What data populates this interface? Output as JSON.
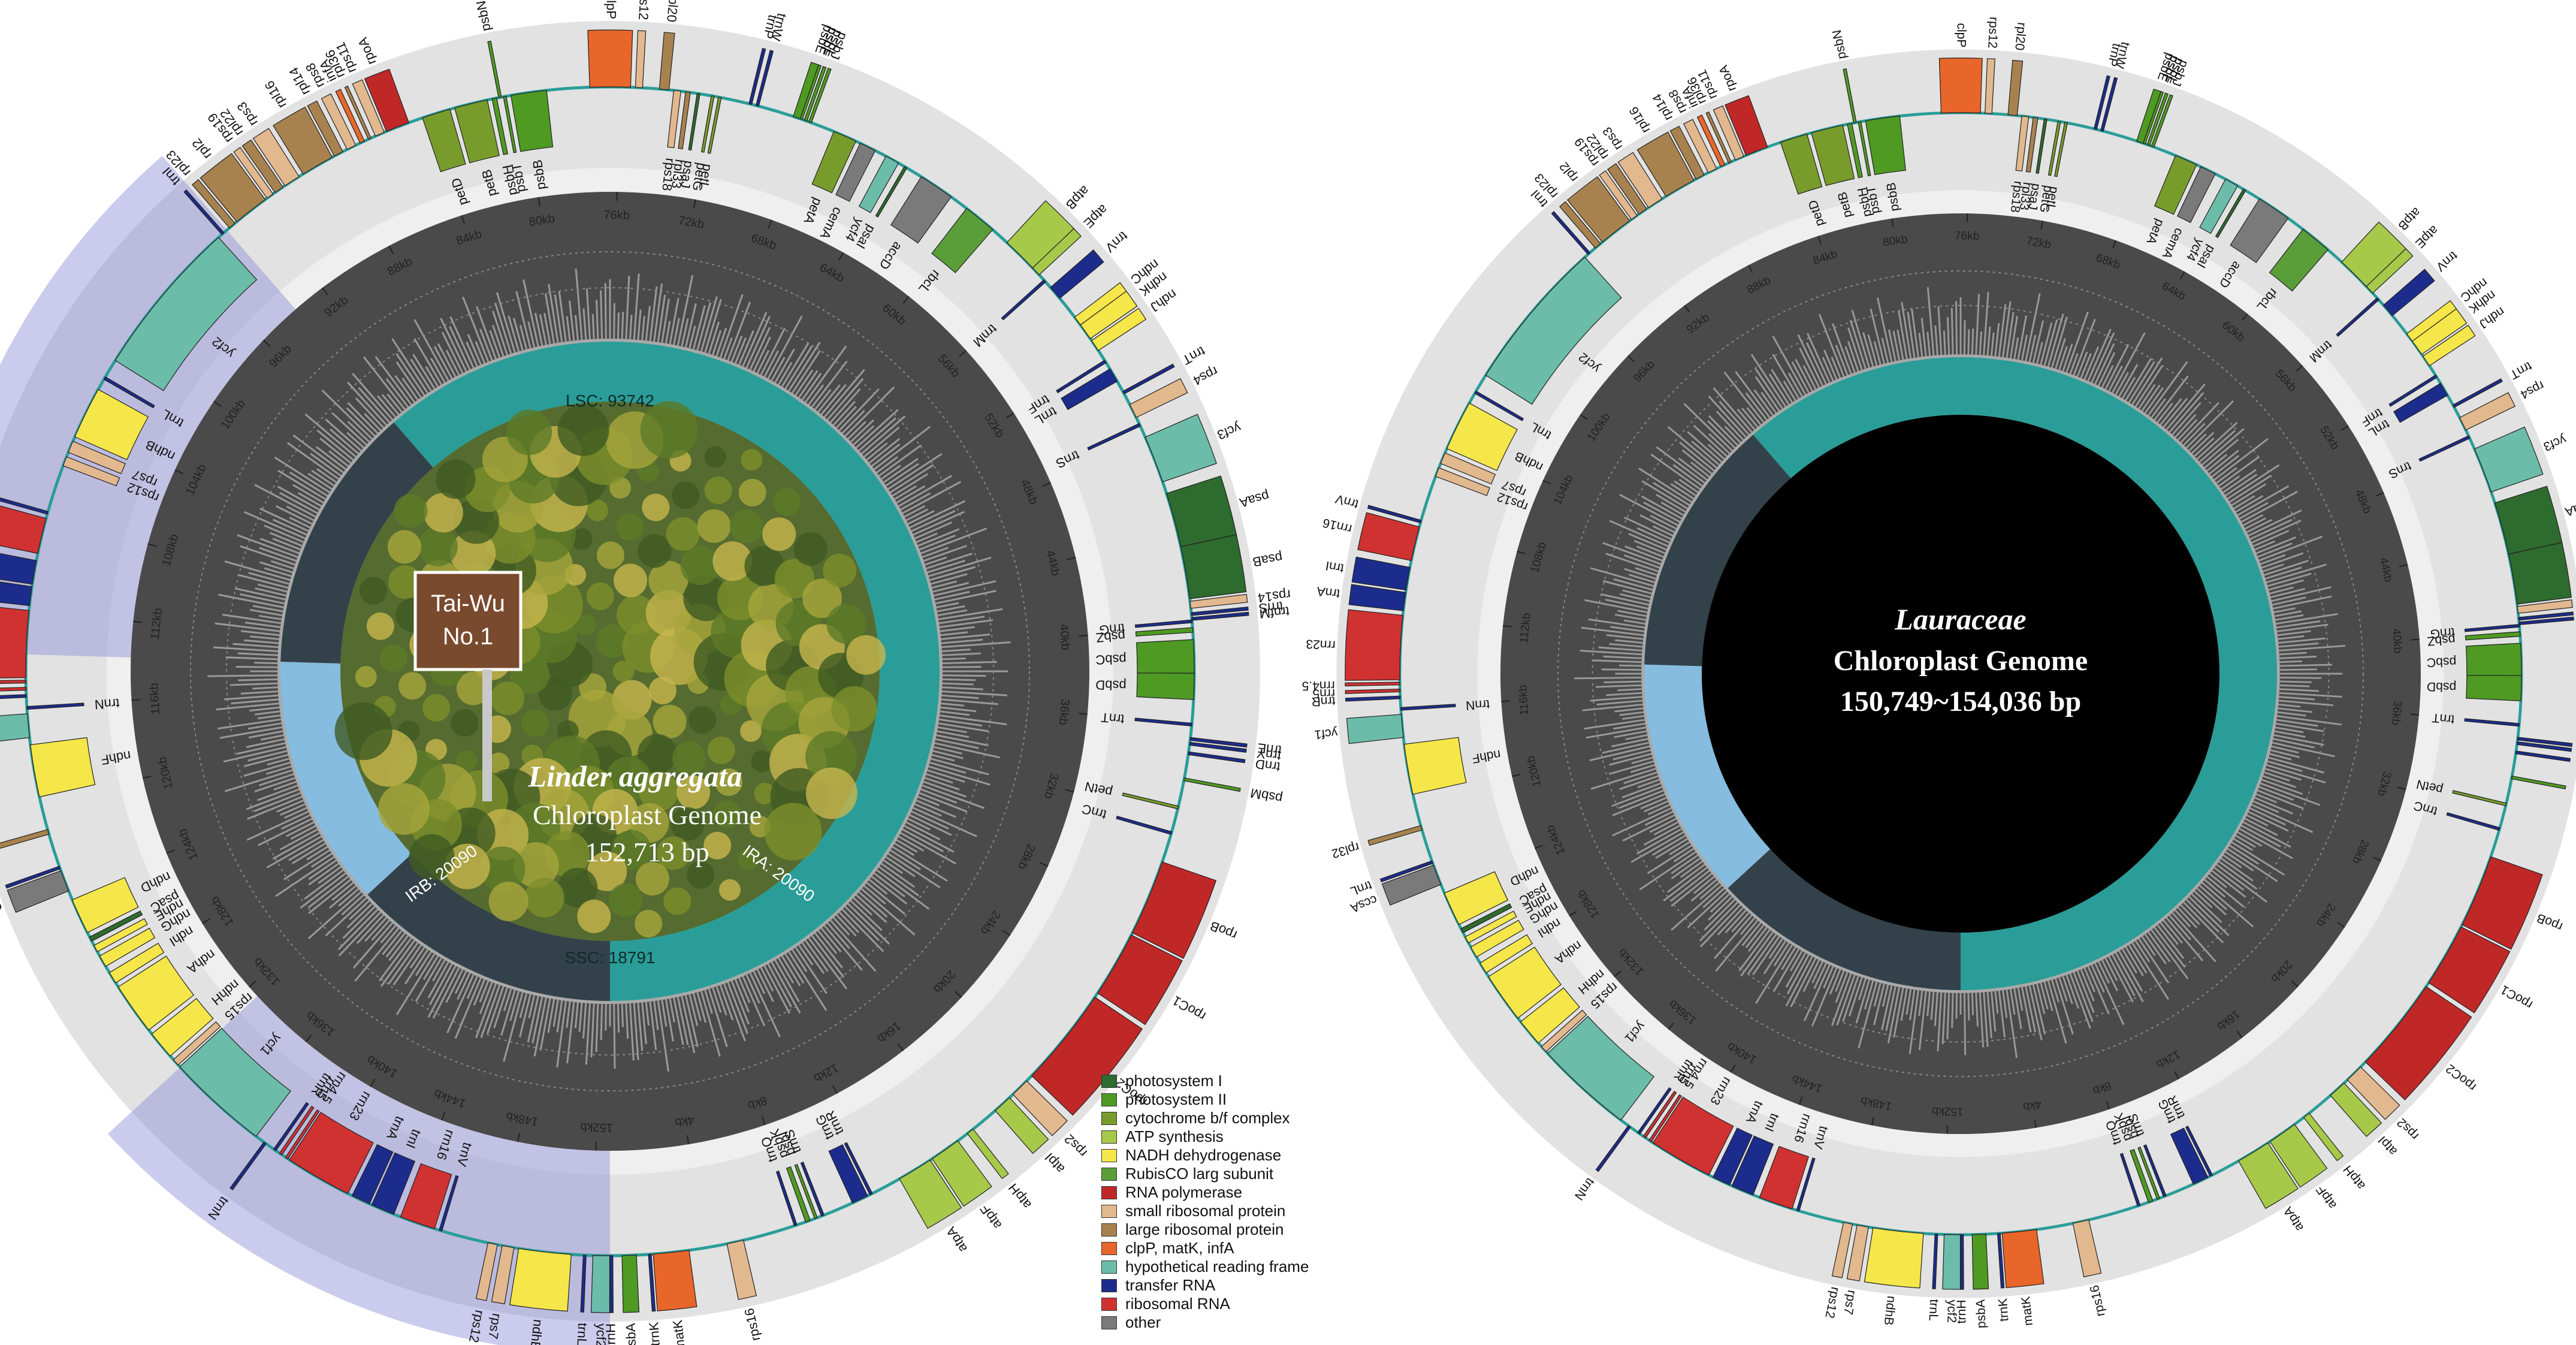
{
  "colors": {
    "photosystem_i": "#2e6b2e",
    "photosystem_ii": "#4e9a22",
    "cytochrome": "#789c2c",
    "atp": "#a6c94a",
    "ndh": "#f5e64a",
    "rubisco": "#5a9e3a",
    "rna_pol": "#c02828",
    "small_ribo": "#e2b88e",
    "large_ribo": "#a8824e",
    "clpp": "#e8662a",
    "ycf": "#6cbcaa",
    "trna": "#1c2c8c",
    "rrna": "#d03232",
    "other": "#7a7a7a",
    "lsc": "#2a9d98",
    "ssc": "#86bce0",
    "ir": "#33414a",
    "ir_band": "#8c8cd6"
  },
  "legend": [
    {
      "label": "photosystem I",
      "color": "photosystem_i"
    },
    {
      "label": "photosystem II",
      "color": "photosystem_ii"
    },
    {
      "label": "cytochrome b/f complex",
      "color": "cytochrome"
    },
    {
      "label": "ATP synthesis",
      "color": "atp"
    },
    {
      "label": "NADH dehydrogenase",
      "color": "ndh"
    },
    {
      "label": "RubisCO larg subunit",
      "color": "rubisco"
    },
    {
      "label": "RNA polymerase",
      "color": "rna_pol"
    },
    {
      "label": "small ribosomal protein",
      "color": "small_ribo"
    },
    {
      "label": "large ribosomal protein",
      "color": "large_ribo"
    },
    {
      "label": "clpP, matK, infA",
      "color": "clpp"
    },
    {
      "label": "hypothetical reading frame",
      "color": "ycf"
    },
    {
      "label": "transfer RNA",
      "color": "trna"
    },
    {
      "label": "ribosomal RNA",
      "color": "rrna"
    },
    {
      "label": "other",
      "color": "other"
    }
  ],
  "map_left": {
    "title_italic": "Linder aggregata",
    "title_line2": "Chloroplast Genome",
    "title_line3": "152,713 bp",
    "sign_line1": "Tai-Wu",
    "sign_line2": "No.1",
    "regions": {
      "lsc": "LSC: 93742",
      "ssc": "SSC: 18791",
      "irb": "IRB: 20090",
      "ira": "IRA: 20090"
    }
  },
  "map_right": {
    "title_italic": "Lauraceae",
    "title_line2": "Chloroplast Genome",
    "title_line3": "150,749~154,036 bp"
  },
  "genes": [
    {
      "n": "psbA",
      "k": "photosystem_ii",
      "o": 1,
      "s": 0.5,
      "e": 1.1
    },
    {
      "n": "trnH",
      "k": "trna",
      "o": 1,
      "s": 0.0,
      "e": 0.1
    },
    {
      "n": "matK",
      "k": "clpp",
      "o": 1,
      "s": 1.8,
      "e": 3.3
    },
    {
      "n": "trnK",
      "k": "trna",
      "o": 1,
      "s": 1.6,
      "e": 1.7
    },
    {
      "n": "rps16",
      "k": "small_ribo",
      "o": 1,
      "s": 4.9,
      "e": 5.6
    },
    {
      "n": "trnQ",
      "k": "trna",
      "o": 0,
      "s": 7.8,
      "e": 7.9
    },
    {
      "n": "psbK",
      "k": "photosystem_ii",
      "o": 0,
      "s": 8.3,
      "e": 8.5
    },
    {
      "n": "psbI",
      "k": "photosystem_ii",
      "o": 0,
      "s": 8.7,
      "e": 8.8
    },
    {
      "n": "trnS",
      "k": "trna",
      "o": 0,
      "s": 9.0,
      "e": 9.1
    },
    {
      "n": "trnG",
      "k": "trna",
      "o": 0,
      "s": 10.4,
      "e": 11.1
    },
    {
      "n": "trnR",
      "k": "trna",
      "o": 0,
      "s": 11.2,
      "e": 11.3
    },
    {
      "n": "atpA",
      "k": "atp",
      "o": 1,
      "s": 12.6,
      "e": 14.1
    },
    {
      "n": "atpF",
      "k": "atp",
      "o": 1,
      "s": 14.2,
      "e": 15.5
    },
    {
      "n": "atpH",
      "k": "atp",
      "o": 1,
      "s": 16.0,
      "e": 16.3
    },
    {
      "n": "atpI",
      "k": "atp",
      "o": 1,
      "s": 17.5,
      "e": 18.3
    },
    {
      "n": "rps2",
      "k": "small_ribo",
      "o": 1,
      "s": 18.5,
      "e": 19.3
    },
    {
      "n": "rpoC2",
      "k": "rna_pol",
      "o": 1,
      "s": 19.6,
      "e": 23.8
    },
    {
      "n": "rpoC1",
      "k": "rna_pol",
      "o": 1,
      "s": 24.0,
      "e": 26.8
    },
    {
      "n": "rpoB",
      "k": "rna_pol",
      "o": 1,
      "s": 26.9,
      "e": 30.1
    },
    {
      "n": "trnC",
      "k": "trna",
      "o": 0,
      "s": 31.3,
      "e": 31.4
    },
    {
      "n": "petN",
      "k": "cytochrome",
      "o": 0,
      "s": 32.4,
      "e": 32.5
    },
    {
      "n": "psbM",
      "k": "photosystem_ii",
      "o": 1,
      "s": 33.6,
      "e": 33.7
    },
    {
      "n": "trnD",
      "k": "trna",
      "o": 1,
      "s": 34.7,
      "e": 34.8
    },
    {
      "n": "trnY",
      "k": "trna",
      "o": 1,
      "s": 35.1,
      "e": 35.2
    },
    {
      "n": "trnE",
      "k": "trna",
      "o": 1,
      "s": 35.3,
      "e": 35.4
    },
    {
      "n": "trnT",
      "k": "trna",
      "o": 0,
      "s": 35.9,
      "e": 36.0
    },
    {
      "n": "psbD",
      "k": "photosystem_ii",
      "o": 0,
      "s": 37.0,
      "e": 38.1
    },
    {
      "n": "psbC",
      "k": "photosystem_ii",
      "o": 0,
      "s": 38.1,
      "e": 39.5
    },
    {
      "n": "psbZ",
      "k": "photosystem_ii",
      "o": 0,
      "s": 39.8,
      "e": 40.0
    },
    {
      "n": "trnG",
      "k": "trna",
      "o": 0,
      "s": 40.2,
      "e": 40.3
    },
    {
      "n": "trnfM",
      "k": "trna",
      "o": 1,
      "s": 40.3,
      "e": 40.4
    },
    {
      "n": "trnS",
      "k": "trna",
      "o": 1,
      "s": 40.5,
      "e": 40.6
    },
    {
      "n": "rps14",
      "k": "small_ribo",
      "o": 1,
      "s": 40.8,
      "e": 41.1
    },
    {
      "n": "psaB",
      "k": "photosystem_i",
      "o": 1,
      "s": 41.2,
      "e": 43.4
    },
    {
      "n": "psaA",
      "k": "photosystem_i",
      "o": 1,
      "s": 43.4,
      "e": 45.7
    },
    {
      "n": "ycf3",
      "k": "ycf",
      "o": 1,
      "s": 46.2,
      "e": 48.2
    },
    {
      "n": "trnS",
      "k": "trna",
      "o": 0,
      "s": 48.7,
      "e": 48.8
    },
    {
      "n": "rps4",
      "k": "small_ribo",
      "o": 1,
      "s": 49.1,
      "e": 49.7
    },
    {
      "n": "trnT",
      "k": "trna",
      "o": 1,
      "s": 50.2,
      "e": 50.3
    },
    {
      "n": "trnL",
      "k": "trna",
      "o": 0,
      "s": 50.8,
      "e": 51.4
    },
    {
      "n": "trnF",
      "k": "trna",
      "o": 0,
      "s": 51.7,
      "e": 51.8
    },
    {
      "n": "ndhJ",
      "k": "ndh",
      "o": 1,
      "s": 52.3,
      "e": 52.8
    },
    {
      "n": "ndhK",
      "k": "ndh",
      "o": 1,
      "s": 52.9,
      "e": 53.6
    },
    {
      "n": "ndhC",
      "k": "ndh",
      "o": 1,
      "s": 53.6,
      "e": 54.0
    },
    {
      "n": "trnV",
      "k": "trna",
      "o": 1,
      "s": 55.0,
      "e": 55.6
    },
    {
      "n": "trnM",
      "k": "trna",
      "o": 0,
      "s": 55.9,
      "e": 56.0
    },
    {
      "n": "atpE",
      "k": "atp",
      "o": 1,
      "s": 56.3,
      "e": 56.7
    },
    {
      "n": "atpB",
      "k": "atp",
      "o": 1,
      "s": 56.7,
      "e": 58.2
    },
    {
      "n": "rbcL",
      "k": "rubisco",
      "o": 0,
      "s": 59.0,
      "e": 60.4
    },
    {
      "n": "accD",
      "k": "other",
      "o": 0,
      "s": 61.2,
      "e": 62.7
    },
    {
      "n": "psaI",
      "k": "photosystem_i",
      "o": 0,
      "s": 63.4,
      "e": 63.5
    },
    {
      "n": "ycf4",
      "k": "ycf",
      "o": 0,
      "s": 63.8,
      "e": 64.4
    },
    {
      "n": "cemA",
      "k": "other",
      "o": 0,
      "s": 64.9,
      "e": 65.6
    },
    {
      "n": "petA",
      "k": "cytochrome",
      "o": 0,
      "s": 65.8,
      "e": 66.8
    },
    {
      "n": "psbJ",
      "k": "photosystem_ii",
      "o": 1,
      "s": 67.8,
      "e": 67.9
    },
    {
      "n": "psbL",
      "k": "photosystem_ii",
      "o": 1,
      "s": 68.0,
      "e": 68.1
    },
    {
      "n": "psbF",
      "k": "photosystem_ii",
      "o": 1,
      "s": 68.2,
      "e": 68.3
    },
    {
      "n": "psbE",
      "k": "photosystem_ii",
      "o": 1,
      "s": 68.3,
      "e": 68.6
    },
    {
      "n": "trnW",
      "k": "trna",
      "o": 1,
      "s": 70.1,
      "e": 70.2
    },
    {
      "n": "trnP",
      "k": "trna",
      "o": 1,
      "s": 70.4,
      "e": 70.5
    },
    {
      "n": "petL",
      "k": "cytochrome",
      "o": 0,
      "s": 71.7,
      "e": 71.8
    },
    {
      "n": "petG",
      "k": "cytochrome",
      "o": 0,
      "s": 72.0,
      "e": 72.1
    },
    {
      "n": "psaJ",
      "k": "photosystem_i",
      "o": 0,
      "s": 72.6,
      "e": 72.7
    },
    {
      "n": "rpl33",
      "k": "large_ribo",
      "o": 0,
      "s": 73.0,
      "e": 73.2
    },
    {
      "n": "rps18",
      "k": "small_ribo",
      "o": 0,
      "s": 73.4,
      "e": 73.7
    },
    {
      "n": "rpl20",
      "k": "large_ribo",
      "o": 1,
      "s": 73.9,
      "e": 74.3
    },
    {
      "n": "rps12",
      "k": "small_ribo",
      "o": 1,
      "s": 75.0,
      "e": 75.3
    },
    {
      "n": "clpP",
      "k": "clpp",
      "o": 1,
      "s": 75.5,
      "e": 77.2
    },
    {
      "n": "psbB",
      "k": "photosystem_ii",
      "o": 0,
      "s": 79.0,
      "e": 80.5
    },
    {
      "n": "psbT",
      "k": "photosystem_ii",
      "o": 0,
      "s": 80.7,
      "e": 80.8
    },
    {
      "n": "psbN",
      "k": "photosystem_ii",
      "o": 1,
      "s": 80.9,
      "e": 81.0
    },
    {
      "n": "psbH",
      "k": "photosystem_ii",
      "o": 0,
      "s": 81.1,
      "e": 81.3
    },
    {
      "n": "petB",
      "k": "cytochrome",
      "o": 0,
      "s": 81.5,
      "e": 82.9
    },
    {
      "n": "petD",
      "k": "cytochrome",
      "o": 0,
      "s": 83.1,
      "e": 84.3
    },
    {
      "n": "rpoA",
      "k": "rna_pol",
      "o": 1,
      "s": 84.9,
      "e": 85.9
    },
    {
      "n": "rps11",
      "k": "small_ribo",
      "o": 1,
      "s": 86.0,
      "e": 86.4
    },
    {
      "n": "rpl36",
      "k": "large_ribo",
      "o": 1,
      "s": 86.6,
      "e": 86.7
    },
    {
      "n": "infA",
      "k": "clpp",
      "o": 1,
      "s": 86.9,
      "e": 87.1
    },
    {
      "n": "rps8",
      "k": "small_ribo",
      "o": 1,
      "s": 87.3,
      "e": 87.7
    },
    {
      "n": "rpl14",
      "k": "large_ribo",
      "o": 1,
      "s": 87.9,
      "e": 88.3
    },
    {
      "n": "rpl16",
      "k": "large_ribo",
      "o": 1,
      "s": 88.4,
      "e": 89.8
    },
    {
      "n": "rps3",
      "k": "small_ribo",
      "o": 1,
      "s": 90.0,
      "e": 90.7
    },
    {
      "n": "rpl22",
      "k": "large_ribo",
      "o": 1,
      "s": 90.8,
      "e": 91.2
    },
    {
      "n": "rps19",
      "k": "small_ribo",
      "o": 1,
      "s": 91.3,
      "e": 91.6
    },
    {
      "n": "rpl2",
      "k": "large_ribo",
      "o": 1,
      "s": 91.7,
      "e": 93.2
    },
    {
      "n": "rpl23",
      "k": "large_ribo",
      "o": 1,
      "s": 93.3,
      "e": 93.6
    },
    {
      "n": "trnI",
      "k": "trna",
      "o": 1,
      "s": 93.9,
      "e": 94.0
    },
    {
      "n": "ycf2",
      "k": "ycf",
      "o": 0,
      "s": 94.2,
      "e": 100.9
    },
    {
      "n": "trnL",
      "k": "trna",
      "o": 0,
      "s": 101.7,
      "e": 101.8
    },
    {
      "n": "ndhB",
      "k": "ndh",
      "o": 0,
      "s": 102.3,
      "e": 104.5
    },
    {
      "n": "rps7",
      "k": "small_ribo",
      "o": 0,
      "s": 104.7,
      "e": 105.2
    },
    {
      "n": "rps12",
      "k": "small_ribo",
      "o": 0,
      "s": 105.4,
      "e": 105.8
    },
    {
      "n": "trnV",
      "k": "trna",
      "o": 1,
      "s": 107.8,
      "e": 107.9
    },
    {
      "n": "rrn16",
      "k": "rrna",
      "o": 1,
      "s": 108.1,
      "e": 109.6
    },
    {
      "n": "trnI",
      "k": "trna",
      "o": 1,
      "s": 109.9,
      "e": 110.9
    },
    {
      "n": "trnA",
      "k": "trna",
      "o": 1,
      "s": 111.0,
      "e": 111.8
    },
    {
      "n": "rrn23",
      "k": "rrna",
      "o": 1,
      "s": 112.0,
      "e": 114.8
    },
    {
      "n": "rrn4.5",
      "k": "rrna",
      "o": 1,
      "s": 114.9,
      "e": 115.0
    },
    {
      "n": "rrn5",
      "k": "rrna",
      "o": 1,
      "s": 115.2,
      "e": 115.3
    },
    {
      "n": "trnR",
      "k": "trna",
      "o": 1,
      "s": 115.5,
      "e": 115.6
    },
    {
      "n": "trnN",
      "k": "trna",
      "o": 0,
      "s": 116.0,
      "e": 116.1
    },
    {
      "n": "ycf1",
      "k": "ycf",
      "o": 1,
      "s": 116.3,
      "e": 117.3
    },
    {
      "n": "ndhF",
      "k": "ndh",
      "o": 0,
      "s": 117.6,
      "e": 119.8
    },
    {
      "n": "rpl32",
      "k": "large_ribo",
      "o": 1,
      "s": 121.2,
      "e": 121.4
    },
    {
      "n": "trnL",
      "k": "trna",
      "o": 1,
      "s": 122.8,
      "e": 122.9
    },
    {
      "n": "ccsA",
      "k": "other",
      "o": 1,
      "s": 123.0,
      "e": 123.9
    },
    {
      "n": "ndhD",
      "k": "ndh",
      "o": 0,
      "s": 124.3,
      "e": 125.8
    },
    {
      "n": "psaC",
      "k": "photosystem_i",
      "o": 0,
      "s": 126.0,
      "e": 126.2
    },
    {
      "n": "ndhE",
      "k": "ndh",
      "o": 0,
      "s": 126.4,
      "e": 126.7
    },
    {
      "n": "ndhG",
      "k": "ndh",
      "o": 0,
      "s": 126.9,
      "e": 127.4
    },
    {
      "n": "ndhI",
      "k": "ndh",
      "o": 0,
      "s": 127.7,
      "e": 128.2
    },
    {
      "n": "ndhA",
      "k": "ndh",
      "o": 0,
      "s": 128.4,
      "e": 130.6
    },
    {
      "n": "ndhH",
      "k": "ndh",
      "o": 0,
      "s": 130.8,
      "e": 132.0
    },
    {
      "n": "rps15",
      "k": "small_ribo",
      "o": 0,
      "s": 132.2,
      "e": 132.5
    },
    {
      "n": "ycf1",
      "k": "ycf",
      "o": 0,
      "s": 132.6,
      "e": 136.9
    },
    {
      "n": "trnN",
      "k": "trna",
      "o": 1,
      "s": 137.3,
      "e": 137.4
    },
    {
      "n": "trnR",
      "k": "trna",
      "o": 0,
      "s": 137.8,
      "e": 137.9
    },
    {
      "n": "rrn5",
      "k": "rrna",
      "o": 0,
      "s": 138.1,
      "e": 138.2
    },
    {
      "n": "rrn4.5",
      "k": "rrna",
      "o": 0,
      "s": 138.4,
      "e": 138.5
    },
    {
      "n": "rrn23",
      "k": "rrna",
      "o": 0,
      "s": 138.6,
      "e": 141.4
    },
    {
      "n": "trnA",
      "k": "trna",
      "o": 0,
      "s": 141.6,
      "e": 142.4
    },
    {
      "n": "trnI",
      "k": "trna",
      "o": 0,
      "s": 142.5,
      "e": 143.5
    },
    {
      "n": "rrn16",
      "k": "rrna",
      "o": 0,
      "s": 143.8,
      "e": 145.3
    },
    {
      "n": "trnV",
      "k": "trna",
      "o": 0,
      "s": 145.5,
      "e": 145.6
    },
    {
      "n": "rps12",
      "k": "small_ribo",
      "o": 1,
      "s": 147.6,
      "e": 148.0
    },
    {
      "n": "rps7",
      "k": "small_ribo",
      "o": 1,
      "s": 148.2,
      "e": 148.7
    },
    {
      "n": "ndhB",
      "k": "ndh",
      "o": 1,
      "s": 148.9,
      "e": 151.1
    },
    {
      "n": "trnL",
      "k": "trna",
      "o": 1,
      "s": 151.6,
      "e": 151.7
    },
    {
      "n": "ycf2",
      "k": "ycf",
      "o": 1,
      "s": 152.0,
      "e": 152.7
    }
  ]
}
